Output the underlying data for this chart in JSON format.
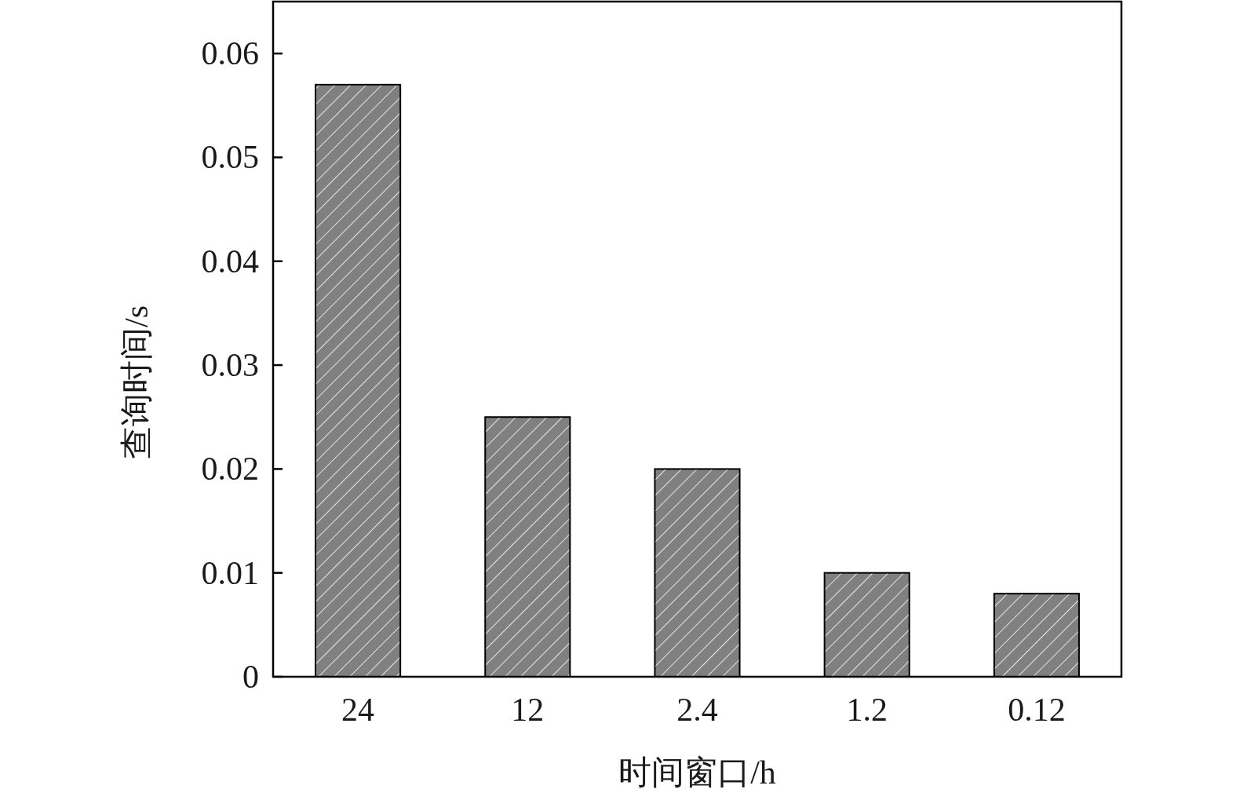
{
  "chart_data": {
    "type": "bar",
    "xlabel": "时间窗口/h",
    "ylabel": "查询时间/s",
    "categories": [
      "24",
      "12",
      "2.4",
      "1.2",
      "0.12"
    ],
    "values": [
      0.057,
      0.025,
      0.02,
      0.01,
      0.008
    ],
    "color": "#808080",
    "ylim": [
      0,
      0.065
    ],
    "yticks": [
      0,
      0.01,
      0.02,
      0.03,
      0.04,
      0.05,
      0.06
    ],
    "grid": false
  }
}
